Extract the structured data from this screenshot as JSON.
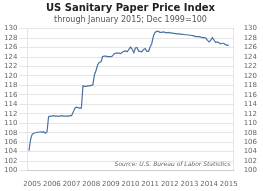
{
  "chart_data": {
    "type": "line",
    "title": "US Sanitary Paper Price Index",
    "subtitle": "through January 2015; Dec 1999=100",
    "annotation": "Source: U.S. Bureau of Labor Statistics",
    "x": [
      2004.83,
      2004.92,
      2005.0,
      2005.08,
      2005.17,
      2005.25,
      2005.33,
      2005.42,
      2005.5,
      2005.58,
      2005.67,
      2005.75,
      2005.83,
      2005.92,
      2006.0,
      2006.08,
      2006.17,
      2006.25,
      2006.33,
      2006.42,
      2006.5,
      2006.58,
      2006.67,
      2006.75,
      2006.83,
      2006.92,
      2007.0,
      2007.08,
      2007.17,
      2007.25,
      2007.33,
      2007.42,
      2007.5,
      2007.58,
      2007.67,
      2007.75,
      2007.83,
      2007.92,
      2008.0,
      2008.08,
      2008.17,
      2008.25,
      2008.33,
      2008.42,
      2008.5,
      2008.58,
      2008.67,
      2008.75,
      2008.83,
      2008.92,
      2009.0,
      2009.08,
      2009.17,
      2009.25,
      2009.33,
      2009.42,
      2009.5,
      2009.58,
      2009.67,
      2009.75,
      2009.83,
      2009.92,
      2010.0,
      2010.08,
      2010.17,
      2010.25,
      2010.33,
      2010.42,
      2010.5,
      2010.58,
      2010.67,
      2010.75,
      2010.83,
      2010.92,
      2011.0,
      2011.08,
      2011.17,
      2011.25,
      2011.33,
      2011.42,
      2011.5,
      2011.58,
      2011.67,
      2011.75,
      2011.83,
      2011.92,
      2012.0,
      2012.08,
      2012.17,
      2012.25,
      2012.33,
      2012.42,
      2012.5,
      2012.58,
      2012.67,
      2012.75,
      2012.83,
      2012.92,
      2013.0,
      2013.08,
      2013.17,
      2013.25,
      2013.33,
      2013.42,
      2013.5,
      2013.58,
      2013.67,
      2013.75,
      2013.83,
      2013.92,
      2014.0,
      2014.08,
      2014.17,
      2014.25,
      2014.33,
      2014.42,
      2014.5,
      2014.58,
      2014.67,
      2014.75,
      2014.83,
      2014.92,
      2015.0
    ],
    "values": [
      104.2,
      106.7,
      107.7,
      107.9,
      108.0,
      108.1,
      108.1,
      108.2,
      108.1,
      108.2,
      107.9,
      108.2,
      111.4,
      111.5,
      111.5,
      111.6,
      111.5,
      111.5,
      111.5,
      111.5,
      111.6,
      111.5,
      111.5,
      111.5,
      111.5,
      111.6,
      111.6,
      112.3,
      113.2,
      113.4,
      113.3,
      113.2,
      113.2,
      117.9,
      117.8,
      117.8,
      117.9,
      117.9,
      118.0,
      118.1,
      120.3,
      121.2,
      122.4,
      122.9,
      123.0,
      124.1,
      124.2,
      124.2,
      124.1,
      124.1,
      124.1,
      124.2,
      124.7,
      124.8,
      124.8,
      124.8,
      124.7,
      125.0,
      125.2,
      125.3,
      125.1,
      125.6,
      126.1,
      125.7,
      124.9,
      125.9,
      126.0,
      125.2,
      125.2,
      125.1,
      125.6,
      125.8,
      125.2,
      125.2,
      126.1,
      126.8,
      128.5,
      129.2,
      129.4,
      129.4,
      129.2,
      129.2,
      129.3,
      129.2,
      129.1,
      129.2,
      129.1,
      129.1,
      129.0,
      129.0,
      128.9,
      128.9,
      128.9,
      128.8,
      128.8,
      128.7,
      128.7,
      128.7,
      128.6,
      128.6,
      128.5,
      128.4,
      128.3,
      128.3,
      128.3,
      128.2,
      128.1,
      128.1,
      128.0,
      127.5,
      127.2,
      127.5,
      128.1,
      127.6,
      127.1,
      127.2,
      127.0,
      126.8,
      126.9,
      126.9,
      126.6,
      126.5,
      126.4
    ],
    "color": "#4a6fa5",
    "xlim": [
      2004.75,
      2015.25
    ],
    "xticks": [
      2005,
      2006,
      2007,
      2008,
      2009,
      2010,
      2011,
      2012,
      2013,
      2014,
      2015
    ],
    "ylim": [
      100,
      130
    ],
    "yticks": [
      100,
      102,
      104,
      106,
      108,
      110,
      112,
      114,
      116,
      118,
      120,
      122,
      124,
      126,
      128,
      130
    ],
    "y2lim": [
      100,
      130
    ],
    "y2ticks": [
      100,
      102,
      104,
      106,
      108,
      110,
      112,
      114,
      116,
      118,
      120,
      122,
      124,
      126,
      128,
      130
    ],
    "grid": "y"
  }
}
